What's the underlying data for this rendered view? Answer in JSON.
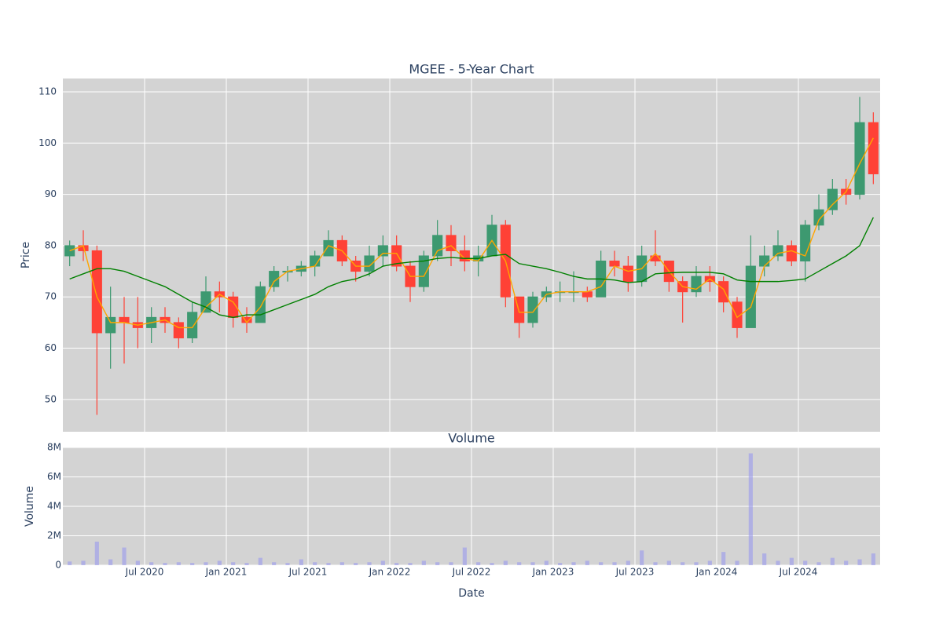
{
  "chart_data": [
    {
      "type": "candlestick",
      "title": "MGEE - 5-Year Chart",
      "y_label": "Price",
      "x": [
        "2020-01",
        "2020-02",
        "2020-03",
        "2020-04",
        "2020-05",
        "2020-06",
        "2020-07",
        "2020-08",
        "2020-09",
        "2020-10",
        "2020-11",
        "2020-12",
        "2021-01",
        "2021-02",
        "2021-03",
        "2021-04",
        "2021-05",
        "2021-06",
        "2021-07",
        "2021-08",
        "2021-09",
        "2021-10",
        "2021-11",
        "2021-12",
        "2022-01",
        "2022-02",
        "2022-03",
        "2022-04",
        "2022-05",
        "2022-06",
        "2022-07",
        "2022-08",
        "2022-09",
        "2022-10",
        "2022-11",
        "2022-12",
        "2023-01",
        "2023-02",
        "2023-03",
        "2023-04",
        "2023-05",
        "2023-06",
        "2023-07",
        "2023-08",
        "2023-09",
        "2023-10",
        "2023-11",
        "2023-12",
        "2024-01",
        "2024-02",
        "2024-03",
        "2024-04",
        "2024-05",
        "2024-06",
        "2024-07",
        "2024-08",
        "2024-09",
        "2024-10",
        "2024-11",
        "2024-12"
      ],
      "open": [
        78,
        80,
        79,
        63,
        66,
        65,
        64,
        66,
        65,
        62,
        67,
        71,
        70,
        66,
        65,
        72,
        75,
        75,
        76,
        78,
        81,
        77,
        75,
        78,
        80,
        76,
        72,
        78,
        82,
        79,
        77,
        78,
        84,
        70,
        65,
        70,
        71,
        71,
        71,
        70,
        77,
        76,
        73,
        78,
        77,
        73,
        71,
        74,
        73,
        69,
        64,
        76,
        78,
        80,
        77,
        84,
        87,
        91,
        90,
        104
      ],
      "high": [
        81,
        83,
        80,
        72,
        70,
        70,
        68,
        68,
        66,
        69,
        74,
        73,
        71,
        68,
        73,
        76,
        76,
        77,
        79,
        83,
        82,
        78,
        80,
        82,
        82,
        77,
        79,
        85,
        84,
        82,
        80,
        86,
        85,
        70,
        71,
        72,
        73,
        75,
        72,
        79,
        79,
        78,
        80,
        83,
        77,
        74,
        76,
        76,
        74,
        70,
        82,
        80,
        83,
        81,
        85,
        90,
        93,
        93,
        109,
        106
      ],
      "low": [
        76,
        77,
        47,
        56,
        57,
        60,
        61,
        63,
        60,
        61,
        67,
        67,
        64,
        63,
        65,
        71,
        73,
        74,
        74,
        78,
        76,
        73,
        74,
        76,
        75,
        69,
        71,
        77,
        76,
        75,
        74,
        78,
        68,
        62,
        64,
        69,
        69,
        69,
        69,
        70,
        74,
        71,
        72,
        76,
        71,
        65,
        70,
        71,
        67,
        62,
        64,
        74,
        77,
        76,
        73,
        83,
        86,
        88,
        89,
        92
      ],
      "close": [
        80,
        79,
        63,
        66,
        65,
        64,
        66,
        65,
        62,
        67,
        71,
        70,
        66,
        65,
        72,
        75,
        75,
        76,
        78,
        81,
        77,
        75,
        78,
        80,
        76,
        72,
        78,
        82,
        79,
        77,
        78,
        84,
        70,
        65,
        70,
        71,
        71,
        71,
        70,
        77,
        76,
        73,
        78,
        77,
        73,
        71,
        74,
        73,
        69,
        64,
        76,
        78,
        80,
        77,
        84,
        87,
        91,
        90,
        104,
        94
      ],
      "increasing_color": "#3d9970",
      "decreasing_color": "#ff4136",
      "series": [
        {
          "name": "MA20",
          "color": "#ffa500",
          "values": [
            79,
            80,
            70,
            65,
            65,
            64.5,
            65,
            65.5,
            64,
            64,
            68,
            70.5,
            69,
            65,
            68,
            73,
            75,
            75.5,
            76,
            80,
            79,
            76,
            76,
            78.5,
            78.5,
            74,
            74,
            79,
            80,
            77.5,
            77,
            81,
            77,
            67,
            67,
            70.5,
            71,
            71,
            71,
            72,
            76,
            75,
            75.5,
            78.5,
            75,
            72,
            71.5,
            73.5,
            71.5,
            66,
            68,
            76,
            78.5,
            79,
            78,
            85,
            88,
            90.5,
            96,
            101
          ]
        },
        {
          "name": "MA200",
          "color": "#008000",
          "values": [
            73.5,
            74.5,
            75.5,
            75.5,
            75,
            74,
            73,
            72,
            70.5,
            69,
            68,
            66.5,
            66,
            66.5,
            66.5,
            67.5,
            68.5,
            69.5,
            70.5,
            72,
            73,
            73.5,
            74.5,
            76,
            76.5,
            76.8,
            77,
            77.5,
            77.7,
            77.5,
            77.5,
            78,
            78.3,
            76.5,
            76,
            75.5,
            74.8,
            74,
            73.5,
            73.5,
            73.3,
            72.8,
            73,
            74.5,
            74.7,
            74.8,
            74.8,
            74.8,
            74.5,
            73.3,
            73,
            73,
            73,
            73.2,
            73.5,
            75,
            76.5,
            78,
            80,
            85.5
          ]
        }
      ],
      "xlim": [
        "2020-01",
        "2025-01"
      ],
      "xticks": [
        "2020-07",
        "2021-01",
        "2021-07",
        "2022-01",
        "2022-07",
        "2023-01",
        "2023-07",
        "2024-01",
        "2024-07"
      ],
      "ylim": [
        43.7,
        112.6
      ],
      "yticks": [
        50,
        60,
        70,
        80,
        90,
        100,
        110
      ],
      "grid": true
    },
    {
      "type": "bar",
      "title": "Volume",
      "x_label": "Date",
      "y_label": "Volume",
      "color": "#9999ee",
      "x": [
        "2020-01",
        "2020-02",
        "2020-03",
        "2020-04",
        "2020-05",
        "2020-06",
        "2020-07",
        "2020-08",
        "2020-09",
        "2020-10",
        "2020-11",
        "2020-12",
        "2021-01",
        "2021-02",
        "2021-03",
        "2021-04",
        "2021-05",
        "2021-06",
        "2021-07",
        "2021-08",
        "2021-09",
        "2021-10",
        "2021-11",
        "2021-12",
        "2022-01",
        "2022-02",
        "2022-03",
        "2022-04",
        "2022-05",
        "2022-06",
        "2022-07",
        "2022-08",
        "2022-09",
        "2022-10",
        "2022-11",
        "2022-12",
        "2023-01",
        "2023-02",
        "2023-03",
        "2023-04",
        "2023-05",
        "2023-06",
        "2023-07",
        "2023-08",
        "2023-09",
        "2023-10",
        "2023-11",
        "2023-12",
        "2024-01",
        "2024-02",
        "2024-03",
        "2024-04",
        "2024-05",
        "2024-06",
        "2024-07",
        "2024-08",
        "2024-09",
        "2024-10",
        "2024-11",
        "2024-12"
      ],
      "values": [
        250000,
        300000,
        1600000,
        400000,
        1200000,
        300000,
        200000,
        150000,
        200000,
        150000,
        200000,
        300000,
        200000,
        150000,
        500000,
        200000,
        150000,
        400000,
        200000,
        150000,
        200000,
        150000,
        200000,
        300000,
        150000,
        150000,
        300000,
        200000,
        200000,
        1200000,
        200000,
        150000,
        300000,
        200000,
        200000,
        300000,
        150000,
        200000,
        300000,
        200000,
        200000,
        300000,
        1000000,
        200000,
        300000,
        200000,
        200000,
        300000,
        900000,
        300000,
        7600000,
        800000,
        300000,
        500000,
        300000,
        200000,
        500000,
        300000,
        400000,
        800000
      ],
      "xlim": [
        "2020-01",
        "2025-01"
      ],
      "xticks": [
        {
          "value": "2020-07",
          "label": "Jul 2020"
        },
        {
          "value": "2021-01",
          "label": "Jan 2021"
        },
        {
          "value": "2021-07",
          "label": "Jul 2021"
        },
        {
          "value": "2022-01",
          "label": "Jan 2022"
        },
        {
          "value": "2022-07",
          "label": "Jul 2022"
        },
        {
          "value": "2023-01",
          "label": "Jan 2023"
        },
        {
          "value": "2023-07",
          "label": "Jul 2023"
        },
        {
          "value": "2024-01",
          "label": "Jan 2024"
        },
        {
          "value": "2024-07",
          "label": "Jul 2024"
        }
      ],
      "ylim": [
        0,
        8000000
      ],
      "yticks": [
        0,
        {
          "value": 2000000,
          "label": "2M"
        },
        {
          "value": 4000000,
          "label": "4M"
        },
        {
          "value": 6000000,
          "label": "6M"
        },
        {
          "value": 8000000,
          "label": "8M"
        }
      ],
      "grid": true
    }
  ]
}
